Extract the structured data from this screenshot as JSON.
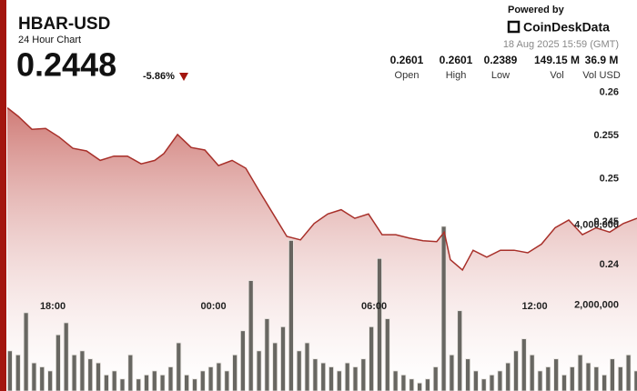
{
  "header": {
    "symbol": "HBAR-USD",
    "subtitle": "24 Hour Chart",
    "price": "0.2448",
    "change": "-5.86%",
    "powered_by": "Powered by",
    "brand": "CoinDeskData",
    "timestamp": "18 Aug 2025 15:59 (GMT)",
    "stats": [
      {
        "value": "0.2601",
        "label": "Open"
      },
      {
        "value": "0.2601",
        "label": "High"
      },
      {
        "value": "0.2389",
        "label": "Low"
      },
      {
        "value": "149.15 M",
        "label": "Vol"
      },
      {
        "value": "36.9 M",
        "label": "Vol USD"
      }
    ]
  },
  "chart_data": {
    "type": "line",
    "x": [
      16.3,
      16.71,
      17.22,
      17.73,
      18.24,
      18.75,
      19.26,
      19.77,
      20.28,
      20.79,
      21.3,
      21.81,
      22.15,
      22.66,
      23.17,
      23.68,
      24.19,
      24.7,
      25.21,
      25.72,
      26.23,
      26.74,
      27.25,
      27.76,
      28.27,
      28.77,
      29.28,
      29.79,
      30.3,
      30.81,
      31.32,
      31.83,
      32.34,
      32.62,
      32.85,
      33.3,
      33.7,
      34.21,
      34.72,
      35.23,
      35.74,
      36.25,
      36.76,
      37.27,
      37.78,
      38.29,
      38.8,
      39.31,
      39.82
    ],
    "series": [
      {
        "name": "HBAR-USD",
        "color": "#a8302a",
        "values": [
          0.2582,
          0.2572,
          0.2557,
          0.2558,
          0.2548,
          0.2535,
          0.2532,
          0.2521,
          0.2526,
          0.2526,
          0.2517,
          0.2521,
          0.2529,
          0.2551,
          0.2536,
          0.2533,
          0.2515,
          0.2521,
          0.2512,
          0.2485,
          0.2459,
          0.2433,
          0.2429,
          0.2448,
          0.2459,
          0.2464,
          0.2454,
          0.2459,
          0.2435,
          0.2435,
          0.2431,
          0.2428,
          0.2427,
          0.2438,
          0.2406,
          0.2394,
          0.2417,
          0.2409,
          0.2417,
          0.2417,
          0.2414,
          0.2424,
          0.2443,
          0.2452,
          0.2435,
          0.2443,
          0.2438,
          0.2448,
          0.2454
        ]
      }
    ],
    "volume": {
      "type": "bar",
      "axis": "y2",
      "color": "#5b5a55",
      "x": [
        16.4,
        16.7,
        17.0,
        17.3,
        17.6,
        17.9,
        18.2,
        18.5,
        18.8,
        19.1,
        19.4,
        19.7,
        20.0,
        20.3,
        20.6,
        20.9,
        21.2,
        21.5,
        21.8,
        22.1,
        22.4,
        22.7,
        23.0,
        23.3,
        23.6,
        23.9,
        24.2,
        24.5,
        24.8,
        25.1,
        25.4,
        25.7,
        26.0,
        26.3,
        26.6,
        26.9,
        27.2,
        27.5,
        27.8,
        28.1,
        28.4,
        28.7,
        29.0,
        29.3,
        29.6,
        29.9,
        30.2,
        30.5,
        30.8,
        31.1,
        31.4,
        31.7,
        32.0,
        32.3,
        32.6,
        32.9,
        33.2,
        33.5,
        33.8,
        34.1,
        34.4,
        34.7,
        35.0,
        35.3,
        35.6,
        35.9,
        36.2,
        36.5,
        36.8,
        37.1,
        37.4,
        37.7,
        38.0,
        38.3,
        38.6,
        38.9,
        39.2,
        39.5,
        39.8
      ],
      "values": [
        1000000,
        900000,
        1950000,
        700000,
        600000,
        500000,
        1400000,
        1700000,
        900000,
        1000000,
        800000,
        700000,
        400000,
        500000,
        300000,
        900000,
        300000,
        400000,
        500000,
        400000,
        600000,
        1200000,
        400000,
        300000,
        500000,
        600000,
        700000,
        500000,
        900000,
        1500000,
        2750000,
        1000000,
        1800000,
        1200000,
        1600000,
        3750000,
        1000000,
        1200000,
        800000,
        700000,
        600000,
        500000,
        700000,
        600000,
        800000,
        1600000,
        3300000,
        1800000,
        500000,
        400000,
        300000,
        200000,
        300000,
        600000,
        4100000,
        900000,
        2000000,
        800000,
        500000,
        300000,
        400000,
        500000,
        700000,
        1000000,
        1300000,
        900000,
        500000,
        600000,
        800000,
        400000,
        600000,
        900000,
        700000,
        600000,
        400000,
        800000,
        600000,
        900000,
        500000
      ]
    },
    "xlim": [
      16.3,
      39.82
    ],
    "xticks": [
      {
        "value": 18,
        "label": "18:00"
      },
      {
        "value": 24,
        "label": "00:00"
      },
      {
        "value": 30,
        "label": "06:00"
      },
      {
        "value": 36,
        "label": "12:00"
      }
    ],
    "ylim": [
      0.2254,
      0.2612
    ],
    "yticks": [
      0.24,
      0.245,
      0.25,
      0.255,
      0.26
    ],
    "y2lim": [
      0,
      7700000
    ],
    "y2ticks": [
      {
        "value": 2000000,
        "label": "2,000,000"
      },
      {
        "value": 4000000,
        "label": "4,000,000"
      }
    ],
    "grid": false
  }
}
